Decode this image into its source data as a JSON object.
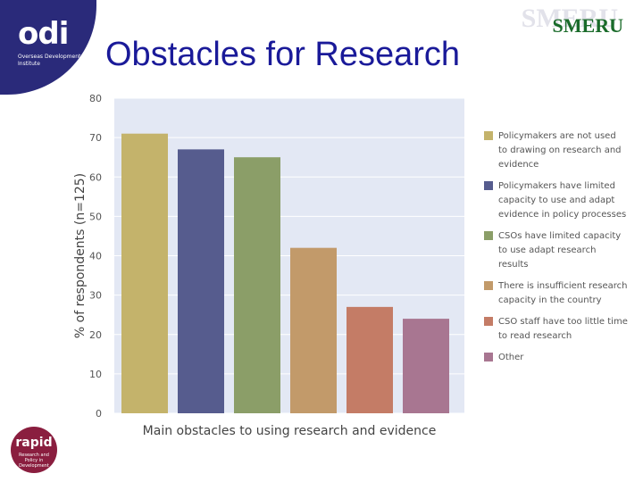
{
  "header": {
    "title": "Obstacles for Research",
    "odi_logo_text": "odi",
    "odi_logo_subtitle": "Overseas Development Institute",
    "smeru_logo_text": "SMERU"
  },
  "footer": {
    "rapid_logo_text": "rapid",
    "rapid_logo_subtitle": "Research and Policy in Development"
  },
  "colors": {
    "title": "#1a1a99",
    "plot_background": "#e3e8f4",
    "series": [
      "#c4b36b",
      "#565c8e",
      "#8b9e68",
      "#c29a6a",
      "#c47c66",
      "#a87691"
    ]
  },
  "chart_data": {
    "type": "bar",
    "title": "",
    "xlabel": "Main obstacles to using research and evidence",
    "ylabel": "% of respondents (n=125)",
    "ylim": [
      0,
      80
    ],
    "yticks": [
      "0",
      "10",
      "20",
      "30",
      "40",
      "50",
      "60",
      "70",
      "80"
    ],
    "grid": true,
    "legend_position": "right",
    "series": [
      {
        "name": "Policymakers are not used to drawing on research and evidence",
        "value": 71
      },
      {
        "name": "Policymakers have limited capacity to use and adapt evidence in policy processes",
        "value": 67
      },
      {
        "name": "CSOs have limited capacity to use adapt research results",
        "value": 65
      },
      {
        "name": "There is insufficient research capacity in the country",
        "value": 42
      },
      {
        "name": "CSO staff have too little time to read research",
        "value": 27
      },
      {
        "name": "Other",
        "value": 24
      }
    ],
    "legend_lines": [
      [
        "Policymakers are not used",
        "to drawing on research and",
        "evidence"
      ],
      [
        "Policymakers have limited",
        "capacity to use and adapt",
        "evidence in policy processes"
      ],
      [
        "CSOs have limited capacity",
        "to use adapt research",
        "results"
      ],
      [
        "There is insufficient research",
        "capacity in the country"
      ],
      [
        "CSO staff have too little time",
        "to read research"
      ],
      [
        "Other"
      ]
    ]
  }
}
